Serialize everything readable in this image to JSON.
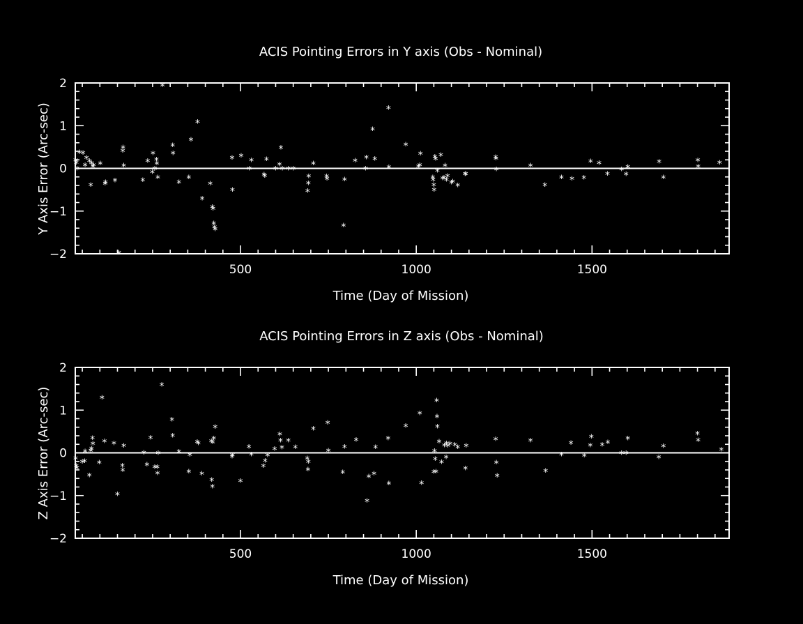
{
  "chart_data": [
    {
      "type": "scatter",
      "title": "ACIS Pointing Errors in Y axis (Obs - Nominal)",
      "xlabel": "Time (Day of Mission)",
      "ylabel": "Y Axis Error (Arc-sec)",
      "xlim": [
        30,
        1890
      ],
      "ylim": [
        -2,
        2
      ],
      "xticks": [
        500,
        1000,
        1500
      ],
      "yticks": [
        -2,
        -1,
        0,
        1,
        2
      ],
      "zero_line": true,
      "grid": false,
      "marker": "*",
      "series": [
        {
          "points": [
            [
              31,
              0.2
            ],
            [
              33,
              0.14
            ],
            [
              35,
              0.0
            ],
            [
              42,
              0.38
            ],
            [
              52,
              0.37
            ],
            [
              58,
              0.08
            ],
            [
              62,
              0.25
            ],
            [
              70,
              0.18
            ],
            [
              74,
              -0.38
            ],
            [
              76,
              0.13
            ],
            [
              80,
              0.05
            ],
            [
              82,
              0.08
            ],
            [
              101,
              0.12
            ],
            [
              115,
              -0.35
            ],
            [
              116,
              -0.32
            ],
            [
              143,
              -0.28
            ],
            [
              154,
              -1.97
            ],
            [
              165,
              0.42
            ],
            [
              166,
              0.5
            ],
            [
              168,
              0.07
            ],
            [
              222,
              -0.27
            ],
            [
              236,
              0.18
            ],
            [
              249,
              -0.08
            ],
            [
              251,
              0.36
            ],
            [
              256,
              0.0
            ],
            [
              261,
              0.21
            ],
            [
              262,
              0.12
            ],
            [
              265,
              -0.2
            ],
            [
              278,
              1.95
            ],
            [
              307,
              0.55
            ],
            [
              308,
              0.36
            ],
            [
              325,
              -0.32
            ],
            [
              353,
              -0.2
            ],
            [
              359,
              0.68
            ],
            [
              378,
              1.09
            ],
            [
              391,
              -0.7
            ],
            [
              414,
              -0.35
            ],
            [
              420,
              -0.9
            ],
            [
              422,
              -0.94
            ],
            [
              424,
              -1.28
            ],
            [
              426,
              -1.37
            ],
            [
              428,
              -1.42
            ],
            [
              476,
              0.25
            ],
            [
              477,
              -0.5
            ],
            [
              502,
              0.3
            ],
            [
              525,
              0.0
            ],
            [
              531,
              0.2
            ],
            [
              567,
              -0.14
            ],
            [
              569,
              -0.17
            ],
            [
              574,
              0.22
            ],
            [
              600,
              0.0
            ],
            [
              611,
              0.1
            ],
            [
              615,
              0.49
            ],
            [
              619,
              0.0
            ],
            [
              636,
              0.0
            ],
            [
              650,
              0.0
            ],
            [
              691,
              -0.52
            ],
            [
              693,
              -0.34
            ],
            [
              694,
              -0.18
            ],
            [
              707,
              0.12
            ],
            [
              745,
              -0.18
            ],
            [
              746,
              -0.24
            ],
            [
              793,
              -1.33
            ],
            [
              796,
              -0.25
            ],
            [
              826,
              0.19
            ],
            [
              856,
              0.0
            ],
            [
              858,
              0.26
            ],
            [
              876,
              0.92
            ],
            [
              882,
              0.23
            ],
            [
              921,
              1.42
            ],
            [
              922,
              0.03
            ],
            [
              970,
              0.56
            ],
            [
              1006,
              0.05
            ],
            [
              1010,
              0.08
            ],
            [
              1012,
              0.35
            ],
            [
              1047,
              -0.2
            ],
            [
              1048,
              -0.26
            ],
            [
              1050,
              -0.38
            ],
            [
              1051,
              -0.5
            ],
            [
              1053,
              0.28
            ],
            [
              1055,
              0.23
            ],
            [
              1060,
              -0.05
            ],
            [
              1070,
              0.32
            ],
            [
              1075,
              -0.23
            ],
            [
              1079,
              -0.21
            ],
            [
              1082,
              0.07
            ],
            [
              1086,
              -0.26
            ],
            [
              1089,
              -0.17
            ],
            [
              1100,
              -0.33
            ],
            [
              1104,
              -0.3
            ],
            [
              1118,
              -0.39
            ],
            [
              1139,
              -0.13
            ],
            [
              1141,
              -0.12
            ],
            [
              1226,
              0.27
            ],
            [
              1227,
              0.24
            ],
            [
              1228,
              -0.02
            ],
            [
              1325,
              0.07
            ],
            [
              1366,
              -0.38
            ],
            [
              1413,
              -0.2
            ],
            [
              1443,
              -0.24
            ],
            [
              1477,
              -0.21
            ],
            [
              1496,
              0.17
            ],
            [
              1520,
              0.13
            ],
            [
              1544,
              -0.12
            ],
            [
              1584,
              -0.02
            ],
            [
              1597,
              -0.13
            ],
            [
              1602,
              0.04
            ],
            [
              1691,
              0.16
            ],
            [
              1703,
              -0.2
            ],
            [
              1801,
              0.2
            ],
            [
              1802,
              0.05
            ],
            [
              1863,
              0.14
            ]
          ]
        }
      ]
    },
    {
      "type": "scatter",
      "title": "ACIS Pointing Errors in  Z axis (Obs - Nominal)",
      "xlabel": "Time (Day of Mission)",
      "ylabel": "Z Axis Error (Arc-sec)",
      "xlim": [
        30,
        1890
      ],
      "ylim": [
        -2,
        2
      ],
      "xticks": [
        500,
        1000,
        1500
      ],
      "yticks": [
        -2,
        -1,
        0,
        1,
        2
      ],
      "zero_line": true,
      "grid": false,
      "marker": "*",
      "series": [
        {
          "points": [
            [
              31,
              -0.12
            ],
            [
              33,
              -0.3
            ],
            [
              35,
              -0.35
            ],
            [
              50,
              -0.2
            ],
            [
              57,
              -0.19
            ],
            [
              58,
              0.04
            ],
            [
              70,
              -0.52
            ],
            [
              74,
              0.06
            ],
            [
              76,
              0.11
            ],
            [
              79,
              0.35
            ],
            [
              80,
              0.22
            ],
            [
              98,
              -0.22
            ],
            [
              106,
              1.3
            ],
            [
              113,
              0.28
            ],
            [
              140,
              0.23
            ],
            [
              150,
              -0.96
            ],
            [
              164,
              -0.29
            ],
            [
              165,
              -0.4
            ],
            [
              168,
              0.17
            ],
            [
              225,
              0.01
            ],
            [
              234,
              -0.27
            ],
            [
              244,
              0.36
            ],
            [
              256,
              -0.33
            ],
            [
              263,
              -0.33
            ],
            [
              264,
              -0.47
            ],
            [
              266,
              0.0
            ],
            [
              276,
              1.6
            ],
            [
              305,
              0.78
            ],
            [
              307,
              0.41
            ],
            [
              325,
              0.03
            ],
            [
              353,
              -0.43
            ],
            [
              356,
              -0.04
            ],
            [
              377,
              0.26
            ],
            [
              380,
              0.23
            ],
            [
              390,
              -0.48
            ],
            [
              417,
              0.28
            ],
            [
              418,
              -0.63
            ],
            [
              420,
              -0.78
            ],
            [
              421,
              0.25
            ],
            [
              424,
              0.34
            ],
            [
              428,
              0.61
            ],
            [
              476,
              -0.08
            ],
            [
              477,
              -0.05
            ],
            [
              500,
              -0.65
            ],
            [
              524,
              0.15
            ],
            [
              531,
              -0.03
            ],
            [
              565,
              -0.3
            ],
            [
              570,
              -0.18
            ],
            [
              577,
              -0.05
            ],
            [
              597,
              0.1
            ],
            [
              612,
              0.44
            ],
            [
              614,
              0.29
            ],
            [
              618,
              0.13
            ],
            [
              636,
              0.29
            ],
            [
              656,
              0.14
            ],
            [
              690,
              -0.12
            ],
            [
              692,
              -0.38
            ],
            [
              693,
              -0.2
            ],
            [
              707,
              0.57
            ],
            [
              748,
              0.71
            ],
            [
              750,
              0.06
            ],
            [
              791,
              -0.45
            ],
            [
              796,
              0.15
            ],
            [
              829,
              0.31
            ],
            [
              860,
              -1.12
            ],
            [
              865,
              -0.55
            ],
            [
              880,
              -0.48
            ],
            [
              884,
              0.14
            ],
            [
              920,
              0.34
            ],
            [
              922,
              -0.71
            ],
            [
              970,
              0.64
            ],
            [
              1010,
              0.93
            ],
            [
              1015,
              -0.7
            ],
            [
              1050,
              -0.44
            ],
            [
              1052,
              0.05
            ],
            [
              1054,
              -0.14
            ],
            [
              1056,
              -0.43
            ],
            [
              1058,
              1.23
            ],
            [
              1059,
              0.86
            ],
            [
              1060,
              0.62
            ],
            [
              1065,
              0.27
            ],
            [
              1072,
              -0.21
            ],
            [
              1080,
              0.18
            ],
            [
              1085,
              -0.1
            ],
            [
              1086,
              0.23
            ],
            [
              1090,
              0.17
            ],
            [
              1096,
              0.22
            ],
            [
              1110,
              0.2
            ],
            [
              1118,
              0.14
            ],
            [
              1140,
              -0.36
            ],
            [
              1142,
              0.17
            ],
            [
              1226,
              0.33
            ],
            [
              1228,
              -0.22
            ],
            [
              1230,
              -0.53
            ],
            [
              1325,
              0.29
            ],
            [
              1368,
              -0.42
            ],
            [
              1413,
              -0.03
            ],
            [
              1440,
              0.24
            ],
            [
              1478,
              -0.06
            ],
            [
              1495,
              0.18
            ],
            [
              1498,
              0.38
            ],
            [
              1529,
              0.2
            ],
            [
              1545,
              0.25
            ],
            [
              1584,
              0.0
            ],
            [
              1597,
              0.0
            ],
            [
              1602,
              0.34
            ],
            [
              1690,
              -0.1
            ],
            [
              1703,
              0.16
            ],
            [
              1800,
              0.46
            ],
            [
              1802,
              0.3
            ],
            [
              1868,
              0.08
            ]
          ]
        }
      ]
    }
  ]
}
